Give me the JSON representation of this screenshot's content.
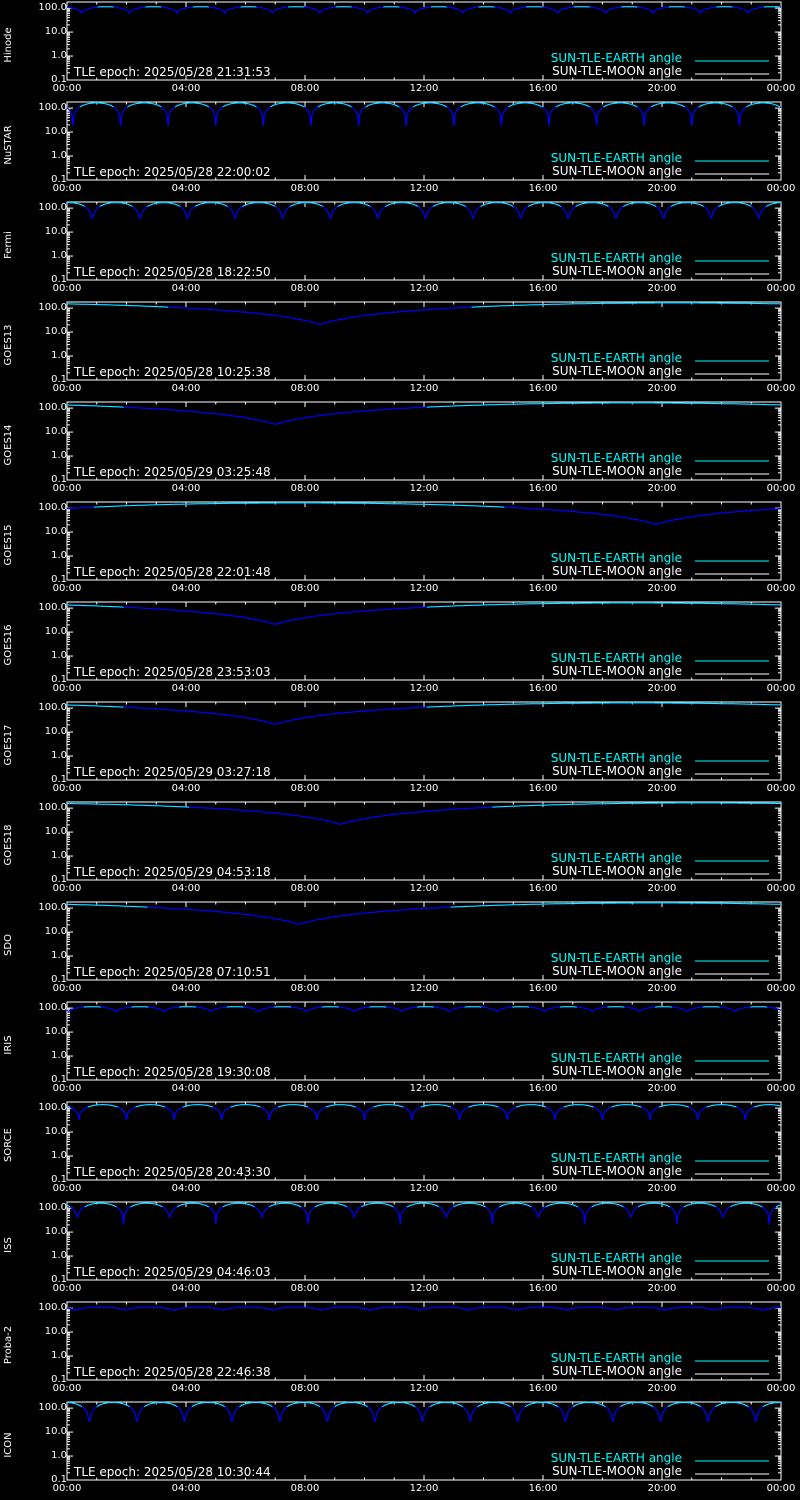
{
  "chart_data": {
    "type": "line",
    "x_tick_labels": [
      "00:00",
      "04:00",
      "08:00",
      "12:00",
      "16:00",
      "20:00",
      "00:00"
    ],
    "y_tick_labels": [
      "100.0",
      "10.0",
      "1.0",
      "0.1"
    ],
    "y_tick_values": [
      100,
      10,
      1,
      0.1
    ],
    "y_scale": "log",
    "ylim": [
      0.1,
      180
    ],
    "xlim_hours": [
      0,
      24
    ],
    "legend": {
      "earth": "SUN-TLE-EARTH angle",
      "moon": "SUN-TLE-MOON angle",
      "placement": "bottom-right"
    },
    "colors": {
      "earth_series": "#0000ff",
      "earth_highlight": "#00ffff",
      "moon_series": "#ffffff",
      "axes": "#ffffff",
      "background": "#000000"
    },
    "panels": [
      {
        "satellite": "Hinode",
        "epoch": "TLE epoch: 2025/05/28 21:31:53",
        "profile": "orbit",
        "period_hours": 1.6,
        "max_deg": 115,
        "min_deg": 62,
        "phase_hours": 0.5
      },
      {
        "satellite": "NuSTAR",
        "epoch": "TLE epoch: 2025/05/28 22:00:02",
        "profile": "orbit",
        "period_hours": 1.6,
        "max_deg": 165,
        "min_deg": 18,
        "phase_hours": 0.2
      },
      {
        "satellite": "Fermi",
        "epoch": "TLE epoch: 2025/05/28 18:22:50",
        "profile": "orbit",
        "period_hours": 1.6,
        "max_deg": 170,
        "min_deg": 14,
        "phase_hours": 0.85
      },
      {
        "satellite": "GOES13",
        "epoch": "TLE epoch: 2025/05/28 10:25:38",
        "profile": "geo",
        "min_hour": 8.5,
        "max_deg": 165,
        "min_deg": 21
      },
      {
        "satellite": "GOES14",
        "epoch": "TLE epoch: 2025/05/29 03:25:48",
        "profile": "geo",
        "min_hour": 7.0,
        "max_deg": 165,
        "min_deg": 21
      },
      {
        "satellite": "GOES15",
        "epoch": "TLE epoch: 2025/05/28 22:01:48",
        "profile": "geo",
        "min_hour": 19.8,
        "max_deg": 165,
        "min_deg": 21
      },
      {
        "satellite": "GOES16",
        "epoch": "TLE epoch: 2025/05/28 23:53:03",
        "profile": "geo",
        "min_hour": 7.0,
        "max_deg": 165,
        "min_deg": 21
      },
      {
        "satellite": "GOES17",
        "epoch": "TLE epoch: 2025/05/29 03:27:18",
        "profile": "geo",
        "min_hour": 7.0,
        "max_deg": 165,
        "min_deg": 21
      },
      {
        "satellite": "GOES18",
        "epoch": "TLE epoch: 2025/05/29 04:53:18",
        "profile": "geo",
        "min_hour": 9.2,
        "max_deg": 165,
        "min_deg": 21
      },
      {
        "satellite": "SDO",
        "epoch": "TLE epoch: 2025/05/28 07:10:51",
        "profile": "geo",
        "min_hour": 7.8,
        "max_deg": 165,
        "min_deg": 21
      },
      {
        "satellite": "IRIS",
        "epoch": "TLE epoch: 2025/05/28 19:30:08",
        "profile": "orbit",
        "period_hours": 1.6,
        "max_deg": 115,
        "min_deg": 68,
        "phase_hours": 0.05
      },
      {
        "satellite": "SORCE",
        "epoch": "TLE epoch: 2025/05/28 20:43:30",
        "profile": "orbit",
        "period_hours": 1.6,
        "max_deg": 140,
        "min_deg": 32,
        "phase_hours": 0.4
      },
      {
        "satellite": "ISS",
        "epoch": "TLE epoch: 2025/05/29 04:46:03",
        "profile": "orbit",
        "period_hours": 1.55,
        "max_deg": 160,
        "min_deg": 22,
        "phase_hours": 0.35
      },
      {
        "satellite": "Proba-2",
        "epoch": "TLE epoch: 2025/05/28 22:46:38",
        "profile": "orbit",
        "period_hours": 1.65,
        "max_deg": 110,
        "min_deg": 78,
        "phase_hours": 0.3
      },
      {
        "satellite": "ICON",
        "epoch": "TLE epoch: 2025/05/28 10:30:44",
        "profile": "orbit",
        "period_hours": 1.6,
        "max_deg": 172,
        "min_deg": 3.5,
        "phase_hours": 0.75
      }
    ]
  }
}
